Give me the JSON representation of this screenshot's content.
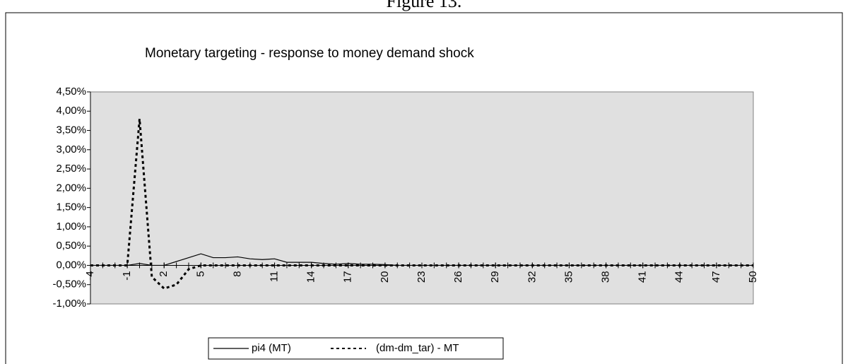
{
  "chart_data": {
    "type": "line",
    "caption": "Figure 13.",
    "title": "Monetary targeting - response to money demand shock",
    "x": [
      -4,
      -3,
      -2,
      -1,
      0,
      1,
      2,
      3,
      4,
      5,
      6,
      7,
      8,
      9,
      10,
      11,
      12,
      13,
      14,
      15,
      16,
      17,
      18,
      19,
      20,
      21,
      22,
      23,
      24,
      25,
      26,
      27,
      28,
      29,
      30,
      31,
      32,
      33,
      34,
      35,
      36,
      37,
      38,
      39,
      40,
      41,
      42,
      43,
      44,
      45,
      46,
      47,
      48,
      49,
      50
    ],
    "series": [
      {
        "name": "pi4 (MT)",
        "color": "#000000",
        "dash": false,
        "values": [
          0,
          0,
          0,
          0,
          0.05,
          0,
          0,
          0.1,
          0.2,
          0.3,
          0.2,
          0.2,
          0.22,
          0.17,
          0.15,
          0.17,
          0.08,
          0.08,
          0.08,
          0.05,
          0.03,
          0.05,
          0.03,
          0.03,
          0.02,
          0,
          0,
          0,
          0,
          0,
          0,
          0,
          0,
          0,
          0,
          0,
          0,
          0,
          0,
          0,
          0,
          0,
          0,
          0,
          0,
          0,
          0,
          0,
          0,
          0,
          0,
          0,
          0,
          0,
          0
        ]
      },
      {
        "name": "(dm-dm_tar) - MT",
        "color": "#000000",
        "dash": true,
        "values": [
          0,
          0,
          0,
          0,
          3.8,
          -0.3,
          -0.6,
          -0.5,
          -0.1,
          0,
          0,
          0,
          0,
          0,
          0,
          0,
          0,
          0,
          0,
          0,
          0,
          0,
          0,
          0,
          0,
          0,
          0,
          0,
          0,
          0,
          0,
          0,
          0,
          0,
          0,
          0,
          0,
          0,
          0,
          0,
          0,
          0,
          0,
          0,
          0,
          0,
          0,
          0,
          0,
          0,
          0,
          0,
          0,
          0,
          0
        ]
      }
    ],
    "xlim": [
      -4,
      50
    ],
    "xticks": [
      -4,
      -1,
      2,
      5,
      8,
      11,
      14,
      17,
      20,
      23,
      26,
      29,
      32,
      35,
      38,
      41,
      44,
      47,
      50
    ],
    "ylim": [
      -1,
      4.5
    ],
    "yticks": [
      {
        "value": -1,
        "label": "-1,00%"
      },
      {
        "value": -0.5,
        "label": "-0,50%"
      },
      {
        "value": 0,
        "label": "0,00%"
      },
      {
        "value": 0.5,
        "label": "0,50%"
      },
      {
        "value": 1,
        "label": "1,00%"
      },
      {
        "value": 1.5,
        "label": "1,50%"
      },
      {
        "value": 2,
        "label": "2,00%"
      },
      {
        "value": 2.5,
        "label": "2,50%"
      },
      {
        "value": 3,
        "label": "3,00%"
      },
      {
        "value": 3.5,
        "label": "3,50%"
      },
      {
        "value": 4,
        "label": "4,00%"
      },
      {
        "value": 4.5,
        "label": "4,50%"
      }
    ],
    "plot_background": "#e0e0e0",
    "legend": "bottom"
  }
}
